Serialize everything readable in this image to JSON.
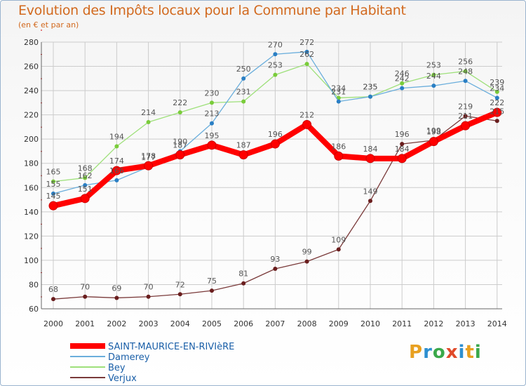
{
  "chart_data": {
    "type": "line",
    "title": "Evolution des Impôts locaux pour la Commune par Habitant",
    "subtitle": "(en € et par an)",
    "xlabel": "",
    "ylabel": "",
    "ylim": [
      60,
      280
    ],
    "yticks": [
      60,
      80,
      100,
      120,
      140,
      160,
      180,
      200,
      220,
      240,
      260,
      280
    ],
    "categories": [
      "2000",
      "2001",
      "2002",
      "2003",
      "2004",
      "2005",
      "2006",
      "2007",
      "2008",
      "2009",
      "2010",
      "2011",
      "2012",
      "2013",
      "2014"
    ],
    "grid": true,
    "series": [
      {
        "name": "SAINT-MAURICE-EN-RIVIèRE",
        "color": "#ff0000",
        "dot_color": "#ff0000",
        "label_color": "#555555",
        "bold": true,
        "values": [
          145,
          151,
          174,
          178,
          187,
          195,
          187,
          196,
          212,
          186,
          184,
          184,
          198,
          211,
          222
        ]
      },
      {
        "name": "Damerey",
        "color": "#6aaedc",
        "dot_color": "#2a7fc4",
        "label_color": "#555555",
        "bold": false,
        "values": [
          155,
          162,
          166,
          177,
          190,
          213,
          250,
          270,
          272,
          231,
          235,
          242,
          244,
          248,
          234
        ]
      },
      {
        "name": "Bey",
        "color": "#9ee07a",
        "dot_color": "#7acc3a",
        "label_color": "#555555",
        "bold": false,
        "values": [
          165,
          168,
          194,
          214,
          222,
          230,
          231,
          253,
          262,
          234,
          235,
          246,
          253,
          256,
          239
        ]
      },
      {
        "name": "Verjux",
        "color": "#7a3a3a",
        "dot_color": "#6a1e1e",
        "label_color": "#555555",
        "bold": false,
        "values": [
          68,
          70,
          69,
          70,
          72,
          75,
          81,
          93,
          99,
          109,
          149,
          196,
          199,
          219,
          215
        ]
      }
    ],
    "point_labels": [
      {
        "series": 0,
        "labels": [
          "145",
          "151",
          "174",
          "178",
          "187",
          "195",
          "187",
          "196",
          "212",
          "186",
          "184",
          "184",
          "198",
          "211",
          "222"
        ]
      },
      {
        "series": 1,
        "labels": [
          "155",
          "162",
          "166",
          "177",
          "190",
          "213",
          "250",
          "270",
          "272",
          "231",
          "235",
          "242",
          "244",
          "248",
          "234"
        ]
      },
      {
        "series": 2,
        "labels": [
          "165",
          "168",
          "194",
          "214",
          "222",
          "230",
          "231",
          "253",
          "262",
          "234",
          "235",
          "246",
          "253",
          "256",
          "239"
        ]
      },
      {
        "series": 3,
        "labels": [
          "68",
          "70",
          "69",
          "70",
          "72",
          "75",
          "81",
          "93",
          "99",
          "109",
          "149",
          "196",
          "199",
          "219",
          "215"
        ]
      }
    ],
    "legend_position": "bottom-left"
  },
  "logo": {
    "letters": [
      "P",
      "r",
      "o",
      "x",
      "i",
      "t",
      "i"
    ]
  },
  "colors": {
    "title": "#d2691e",
    "axis": "#333333",
    "grid": "#cccccc",
    "axis_tick_red": "#cc0000"
  }
}
